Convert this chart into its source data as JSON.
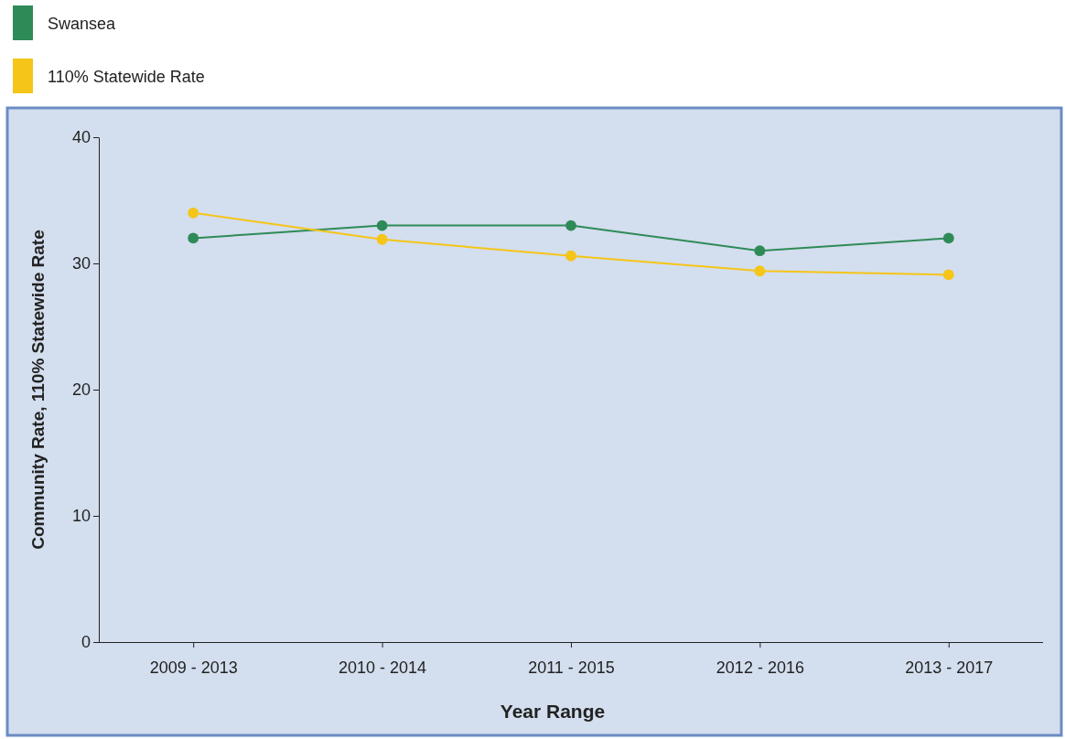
{
  "chart_data": {
    "type": "line",
    "xlabel": "Year Range",
    "ylabel": "Community Rate, 110% Statewide Rate",
    "categories": [
      "2009 - 2013",
      "2010 - 2014",
      "2011 - 2015",
      "2012 - 2016",
      "2013 - 2017"
    ],
    "series": [
      {
        "name": "Swansea",
        "color": "#2e8b57",
        "values": [
          32,
          33,
          33,
          31,
          32
        ]
      },
      {
        "name": "110% Statewide Rate",
        "color": "#f5c518",
        "values": [
          34,
          31.9,
          30.6,
          29.4,
          29.1
        ]
      }
    ],
    "ylim": [
      0,
      40
    ],
    "yticks": [
      0,
      10,
      20,
      30,
      40
    ],
    "grid": false,
    "legend": "top left",
    "marker": "circle"
  }
}
